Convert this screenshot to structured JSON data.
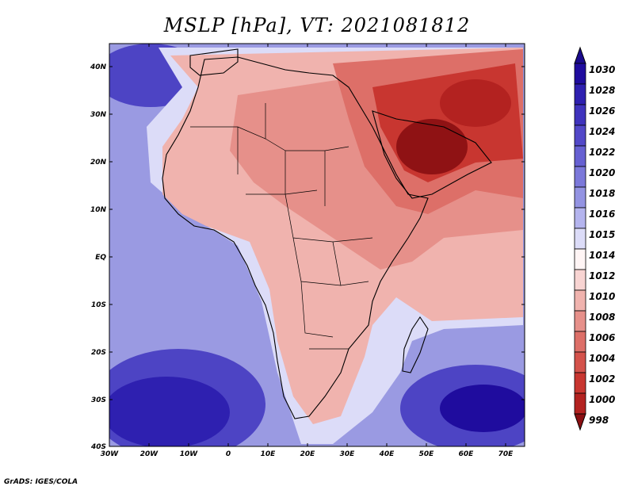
{
  "title": "MSLP [hPa], VT: 2021081812",
  "footer": "GrADS: IGES/COLA",
  "axes": {
    "lon_labels": [
      "30W",
      "20W",
      "10W",
      "0",
      "10E",
      "20E",
      "30E",
      "40E",
      "50E",
      "60E",
      "70E"
    ],
    "lat_labels": [
      "40N",
      "30N",
      "20N",
      "10N",
      "EQ",
      "10S",
      "20S",
      "30S",
      "40S"
    ]
  },
  "colorbar": {
    "levels": [
      "1030",
      "1028",
      "1026",
      "1024",
      "1022",
      "1020",
      "1018",
      "1016",
      "1015",
      "1014",
      "1012",
      "1010",
      "1008",
      "1006",
      "1004",
      "1002",
      "1000",
      "998"
    ],
    "colors": [
      "#1f0c9e",
      "#2e20b0",
      "#3f33bd",
      "#5248c8",
      "#6660d2",
      "#7b78da",
      "#9393e2",
      "#b4b4ee",
      "#dcdcf8",
      "#fff5f5",
      "#f8d4d2",
      "#f0b3ae",
      "#e6908a",
      "#dd6f68",
      "#d4524b",
      "#c83630",
      "#b32220",
      "#8f1214"
    ],
    "top_arrow_color": "#1a0a8c",
    "bottom_arrow_color": "#8a0f12"
  }
}
